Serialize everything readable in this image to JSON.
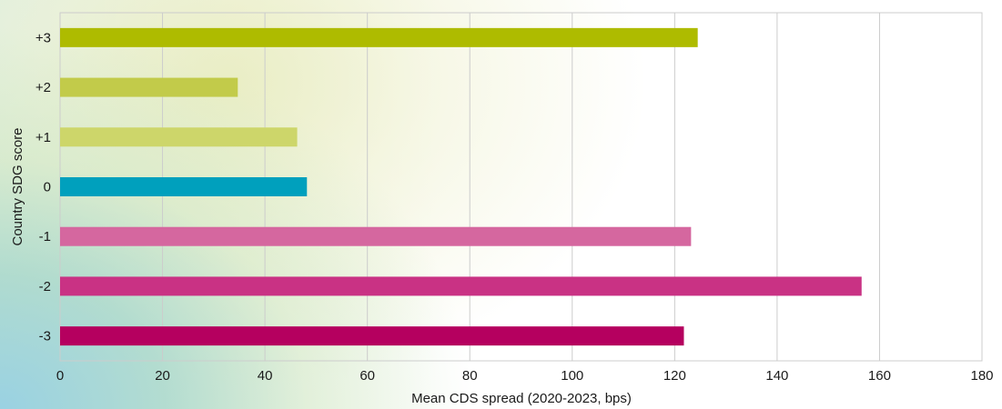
{
  "chart_data": {
    "type": "bar",
    "orientation": "horizontal",
    "categories": [
      "+3",
      "+2",
      "+1",
      "0",
      "-1",
      "-2",
      "-3"
    ],
    "values": [
      124.5,
      34.7,
      46.3,
      48.2,
      123.2,
      156.5,
      121.8
    ],
    "colors": [
      "#aebb00",
      "#c2cb4a",
      "#cdd66a",
      "#00a0bd",
      "#d5679f",
      "#c93284",
      "#b5005f"
    ],
    "xlabel": "Mean CDS spread (2020-2023, bps)",
    "ylabel": "Country SDG score",
    "xlim": [
      0,
      180
    ],
    "xticks": [
      0,
      20,
      40,
      60,
      80,
      100,
      120,
      140,
      160,
      180
    ],
    "grid": "vertical",
    "legend": "none"
  }
}
